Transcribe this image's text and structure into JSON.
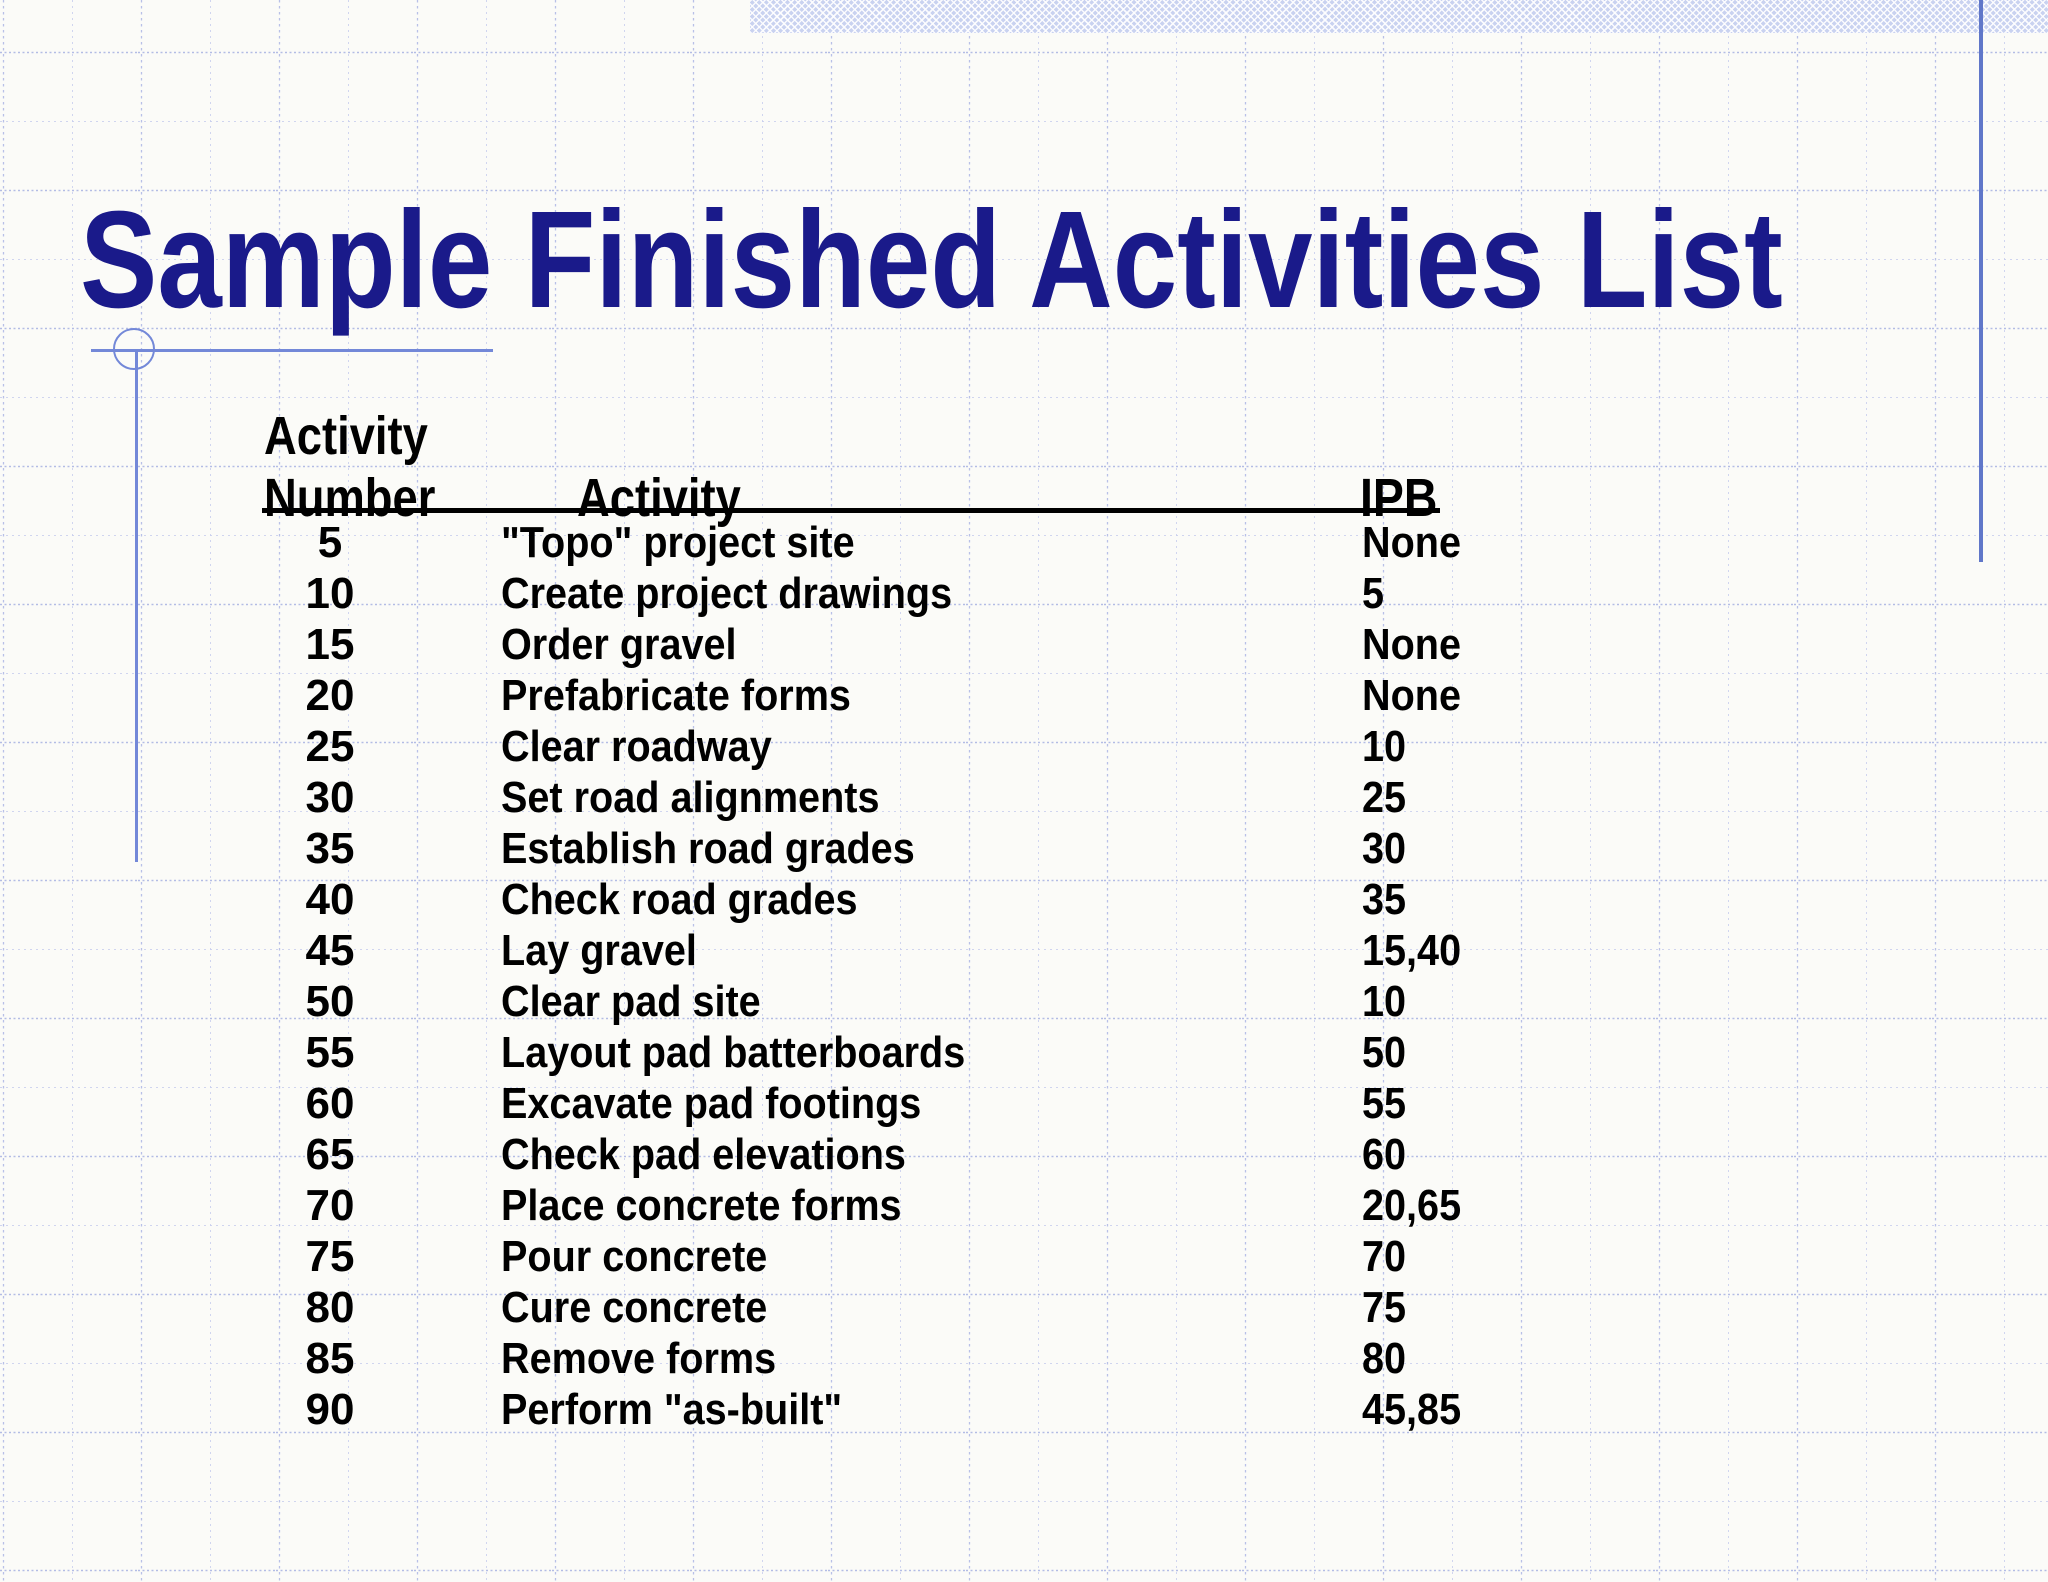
{
  "slide_title": "Sample Finished Activities List",
  "table": {
    "header": {
      "col1_line1": "Activity",
      "col1_line2": "Number",
      "col2": "Activity",
      "col3": "IPB"
    },
    "rows": [
      {
        "number": "5",
        "activity": "\"Topo\" project site",
        "ipb": "None"
      },
      {
        "number": "10",
        "activity": "Create project drawings",
        "ipb": "5"
      },
      {
        "number": "15",
        "activity": "Order gravel",
        "ipb": "None"
      },
      {
        "number": "20",
        "activity": "Prefabricate forms",
        "ipb": "None"
      },
      {
        "number": "25",
        "activity": "Clear roadway",
        "ipb": "10"
      },
      {
        "number": "30",
        "activity": "Set road alignments",
        "ipb": "25"
      },
      {
        "number": "35",
        "activity": "Establish road grades",
        "ipb": "30"
      },
      {
        "number": "40",
        "activity": "Check road grades",
        "ipb": "35"
      },
      {
        "number": "45",
        "activity": "Lay gravel",
        "ipb": "15,40"
      },
      {
        "number": "50",
        "activity": "Clear pad site",
        "ipb": "10"
      },
      {
        "number": "55",
        "activity": "Layout pad batterboards",
        "ipb": "50"
      },
      {
        "number": "60",
        "activity": "Excavate pad footings",
        "ipb": "55"
      },
      {
        "number": "65",
        "activity": "Check pad elevations",
        "ipb": "60"
      },
      {
        "number": "70",
        "activity": "Place concrete forms",
        "ipb": "20,65"
      },
      {
        "number": "75",
        "activity": "Pour concrete",
        "ipb": "70"
      },
      {
        "number": "80",
        "activity": "Cure concrete",
        "ipb": "75"
      },
      {
        "number": "85",
        "activity": "Remove forms",
        "ipb": "80"
      },
      {
        "number": "90",
        "activity": "Perform \"as-built\"",
        "ipb": "45,85"
      }
    ]
  },
  "colors": {
    "background": "#fbfbf8",
    "title_text": "#1a1a8a",
    "body_text": "#000000",
    "grid_major": "#a7b1e2",
    "grid_minor": "#c9cfee",
    "ornament_line": "#7388d8",
    "hatched_band": "#c9d2f0",
    "right_vertical_line": "#6077c9"
  }
}
